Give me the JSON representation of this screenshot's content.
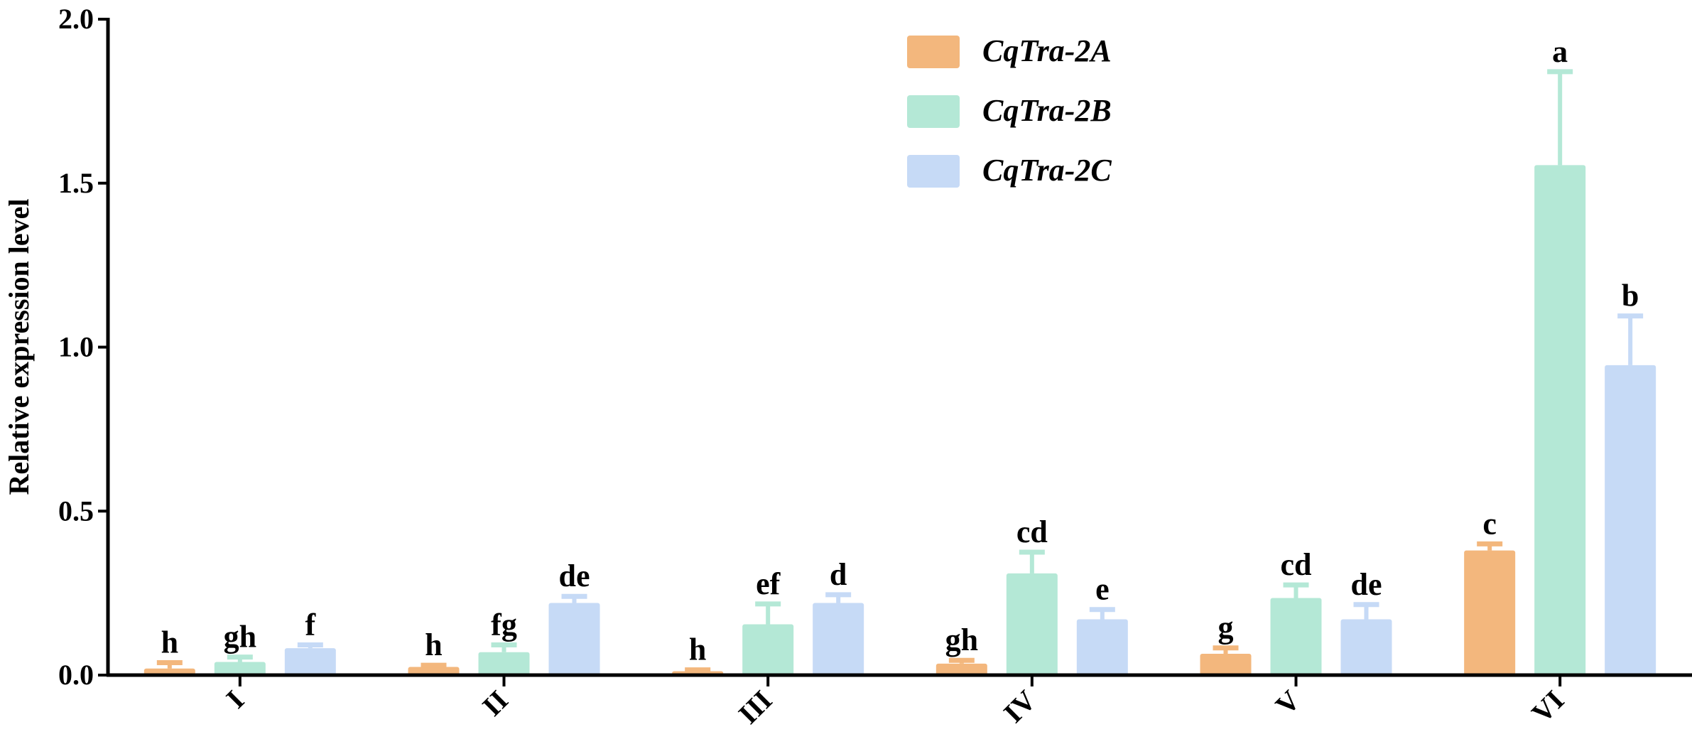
{
  "chart_data": {
    "type": "bar",
    "title": "",
    "xlabel": "",
    "ylabel": "Relative expression level",
    "ylim": [
      0,
      2.0
    ],
    "yticks": [
      "0.0",
      "0.5",
      "1.0",
      "1.5",
      "2.0"
    ],
    "categories": [
      "I",
      "II",
      "III",
      "IV",
      "V",
      "VI"
    ],
    "series": [
      {
        "name": "CqTra-2A",
        "color": "#F3B77D",
        "values": [
          0.02,
          0.025,
          0.012,
          0.035,
          0.065,
          0.38
        ],
        "errors": [
          0.018,
          0.005,
          0.004,
          0.01,
          0.018,
          0.02
        ],
        "labels": [
          "h",
          "h",
          "h",
          "gh",
          "g",
          "c"
        ]
      },
      {
        "name": "CqTra-2B",
        "color": "#B4E8D6",
        "values": [
          0.04,
          0.07,
          0.155,
          0.31,
          0.235,
          1.555
        ],
        "errors": [
          0.015,
          0.022,
          0.062,
          0.065,
          0.04,
          0.285
        ],
        "labels": [
          "gh",
          "fg",
          "ef",
          "cd",
          "cd",
          "a"
        ]
      },
      {
        "name": "CqTra-2C",
        "color": "#C6DAF6",
        "values": [
          0.082,
          0.22,
          0.22,
          0.17,
          0.17,
          0.945
        ],
        "errors": [
          0.01,
          0.02,
          0.025,
          0.03,
          0.045,
          0.15
        ],
        "labels": [
          "f",
          "de",
          "d",
          "e",
          "de",
          "b"
        ]
      }
    ],
    "legend_position": "top-center",
    "grid": false
  }
}
